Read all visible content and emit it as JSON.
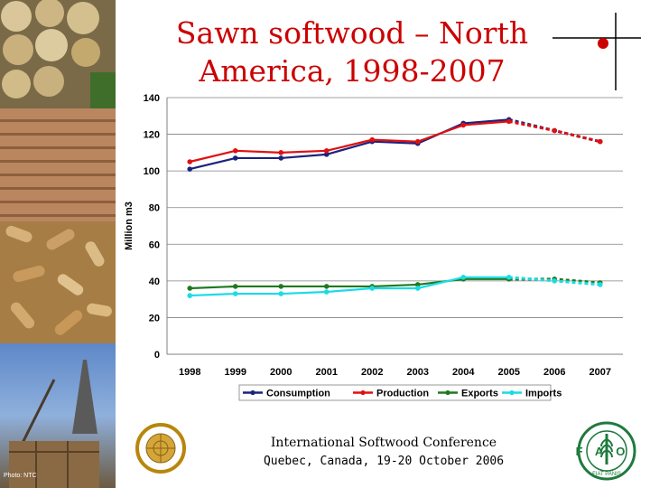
{
  "slide": {
    "title": "Sawn softwood – North America, 1998-2007",
    "photo_credit": "Photo: NTC"
  },
  "footer": {
    "conference": "International Softwood Conference",
    "location": "Quebec, Canada, 19-20 October 2006"
  },
  "logos": {
    "fao_text": "FAO",
    "fao_motto": "FIAT PANIS"
  },
  "colors": {
    "title": "#cc0000",
    "consumption": "#1a237e",
    "production": "#e01010",
    "exports": "#1e7a1e",
    "imports": "#19dce6",
    "un_blue": "#4d7fc0",
    "fao_green": "#1f7a3e"
  },
  "chart_data": {
    "type": "line",
    "ylabel": "Million m3",
    "ylim": [
      0,
      140
    ],
    "yticks": [
      0,
      20,
      40,
      60,
      80,
      100,
      120,
      140
    ],
    "categories": [
      "1998",
      "1999",
      "2000",
      "2001",
      "2002",
      "2003",
      "2004",
      "2005",
      "2006",
      "2007"
    ],
    "forecast_from": "2005",
    "gridlines": "horizontal",
    "legend_position": "bottom",
    "series": [
      {
        "name": "Consumption",
        "color": "#1a237e",
        "values": [
          101,
          107,
          107,
          109,
          116,
          115,
          126,
          128,
          122,
          116
        ]
      },
      {
        "name": "Production",
        "color": "#e01010",
        "values": [
          105,
          111,
          110,
          111,
          117,
          116,
          125,
          127,
          122,
          116
        ]
      },
      {
        "name": "Exports",
        "color": "#1e7a1e",
        "values": [
          36,
          37,
          37,
          37,
          37,
          38,
          41,
          41,
          41,
          39
        ]
      },
      {
        "name": "Imports",
        "color": "#19dce6",
        "values": [
          32,
          33,
          33,
          34,
          36,
          36,
          42,
          42,
          40,
          38
        ]
      }
    ]
  }
}
